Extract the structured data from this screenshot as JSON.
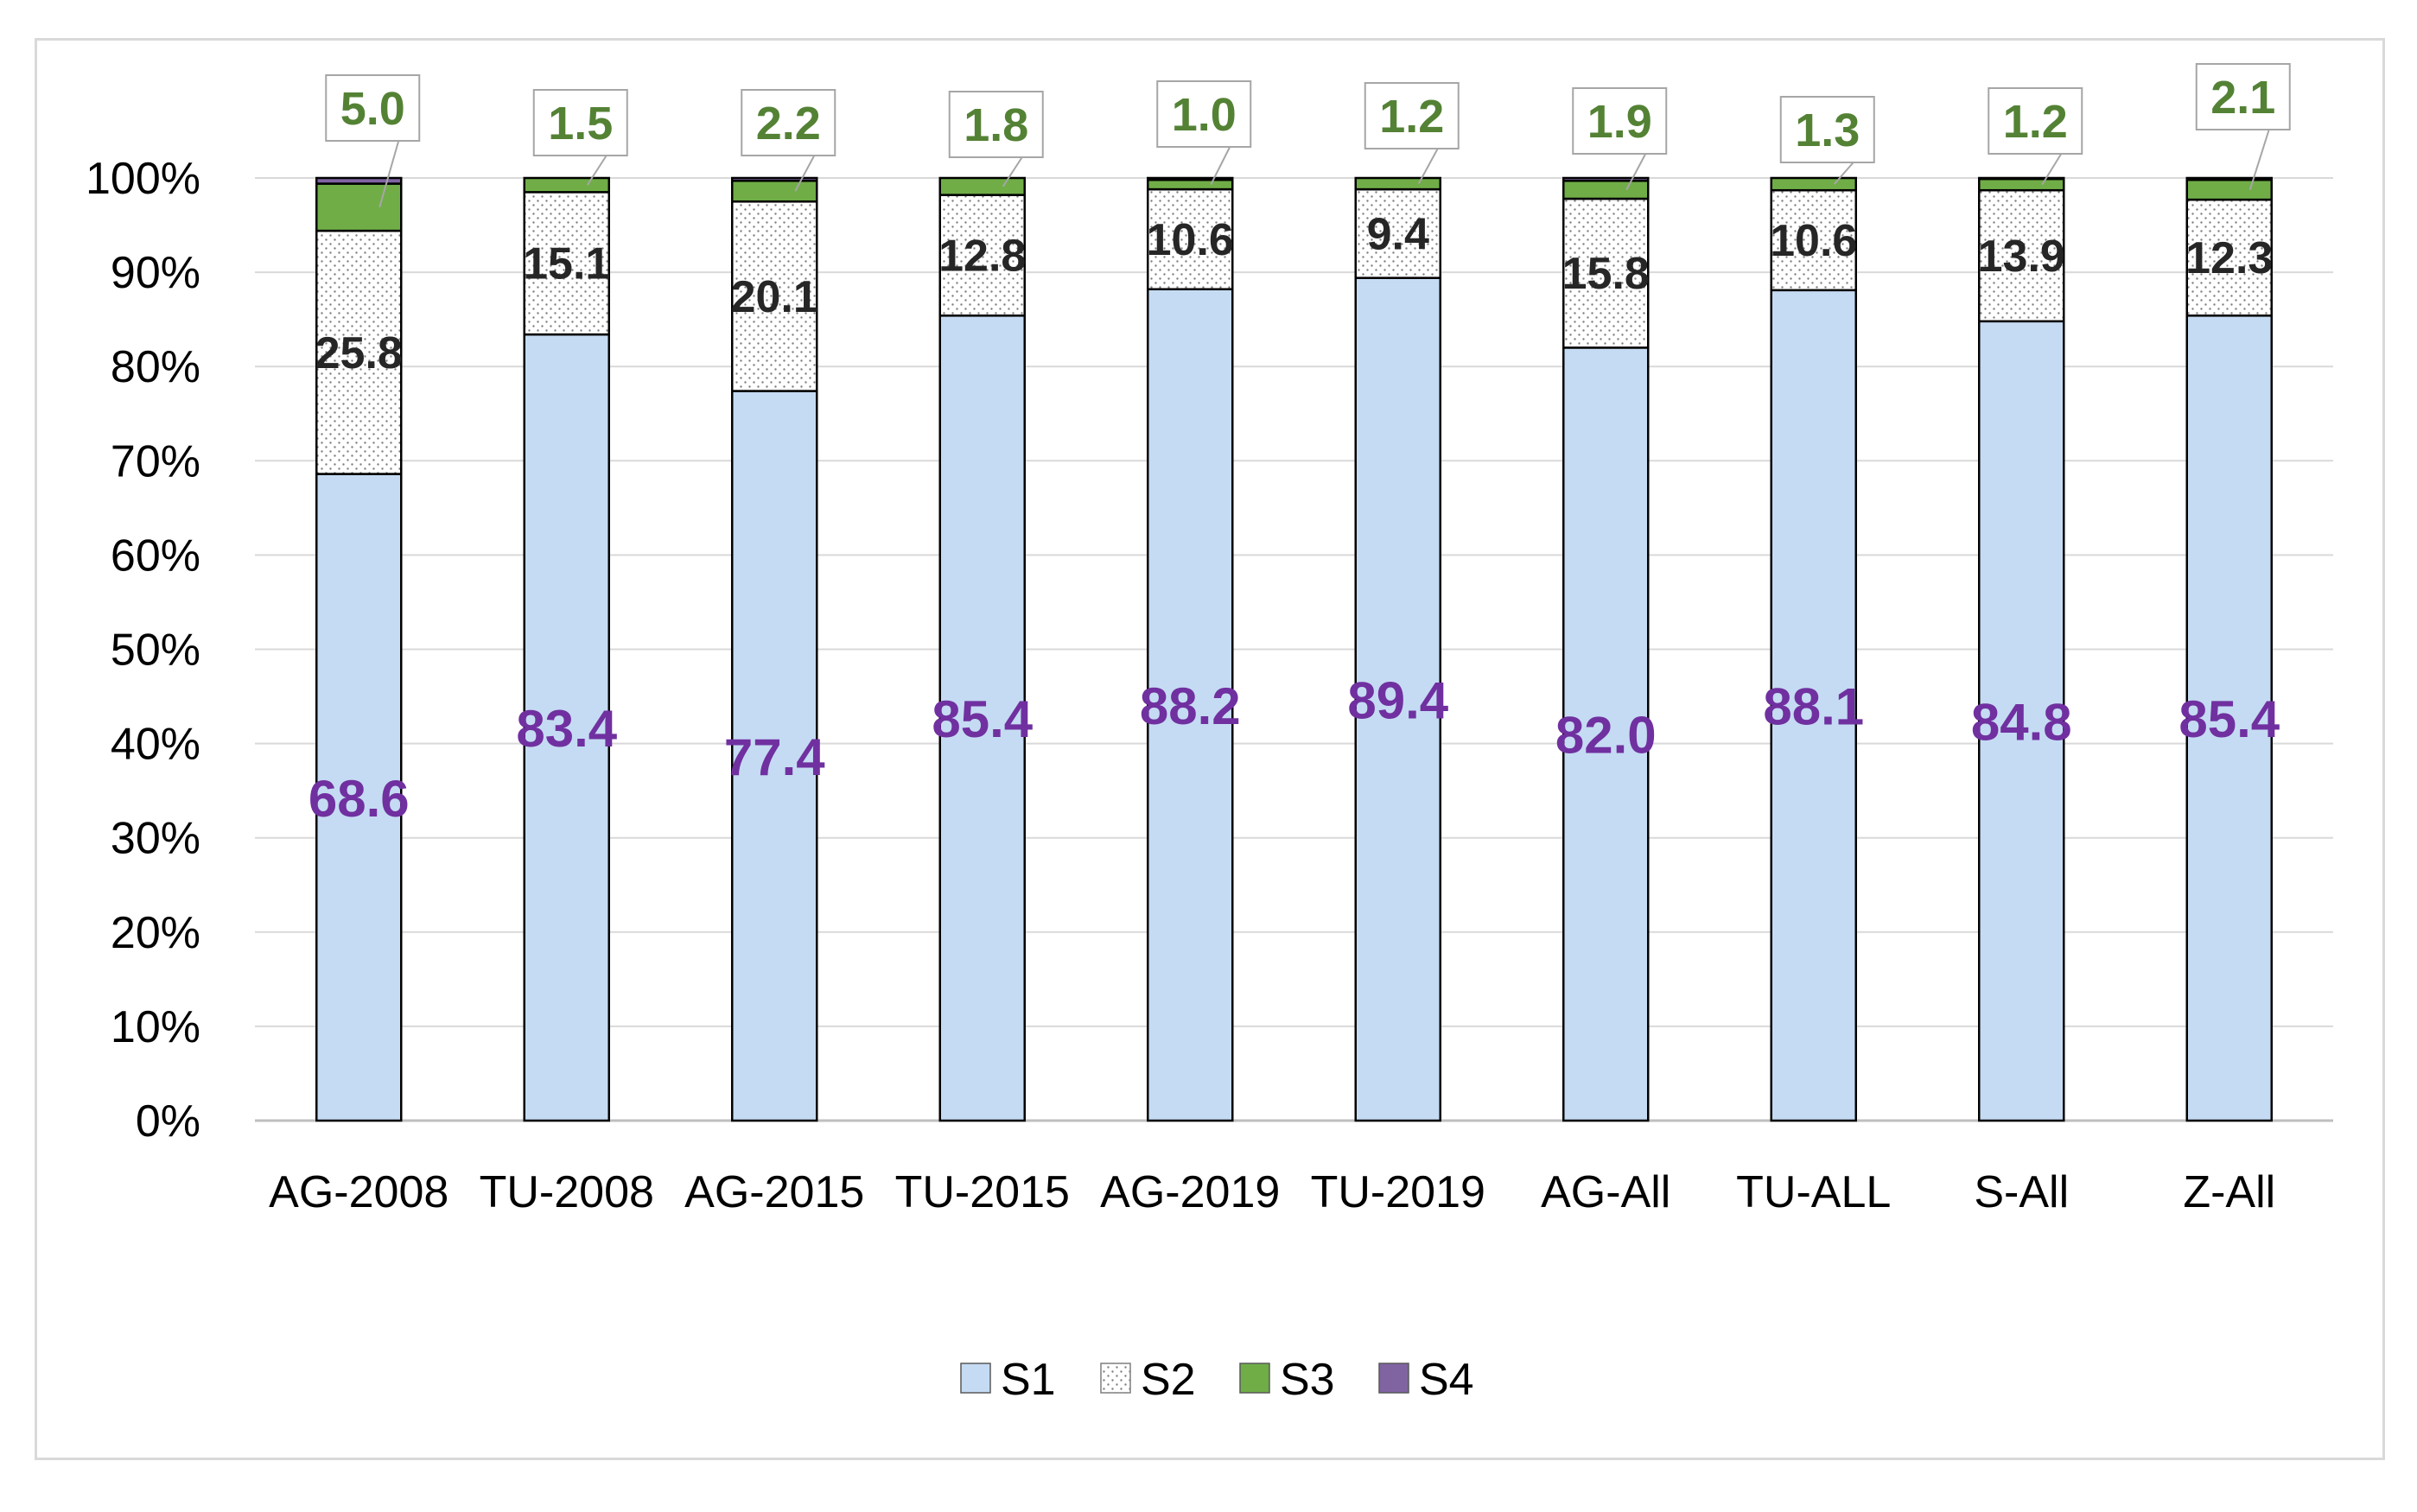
{
  "chart_data": {
    "type": "bar",
    "stacked": true,
    "percent": true,
    "title": "",
    "xlabel": "",
    "ylabel": "",
    "ylim": [
      0,
      100
    ],
    "grid": true,
    "legend_position": "bottom",
    "y_ticks": [
      "0%",
      "10%",
      "20%",
      "30%",
      "40%",
      "50%",
      "60%",
      "70%",
      "80%",
      "90%",
      "100%"
    ],
    "categories": [
      "AG-2008",
      "TU-2008",
      "AG-2015",
      "TU-2015",
      "AG-2019",
      "TU-2019",
      "AG-All",
      "TU-ALL",
      "S-All",
      "Z-All"
    ],
    "series": [
      {
        "name": "S1",
        "color": "#c5dbf3",
        "pattern": "solid",
        "values": [
          68.6,
          83.4,
          77.4,
          85.4,
          88.2,
          89.4,
          82.0,
          88.1,
          84.8,
          85.4
        ],
        "labels": [
          "68.6",
          "83.4",
          "77.4",
          "85.4",
          "88.2",
          "89.4",
          "82.0",
          "88.1",
          "84.8",
          "85.4"
        ]
      },
      {
        "name": "S2",
        "color": "#ffffff",
        "pattern": "dotted",
        "values": [
          25.8,
          15.1,
          20.1,
          12.8,
          10.6,
          9.4,
          15.8,
          10.6,
          13.9,
          12.3
        ],
        "labels": [
          "25.8",
          "15.1",
          "20.1",
          "12.8",
          "10.6",
          "9.4",
          "15.8",
          "10.6",
          "13.9",
          "12.3"
        ]
      },
      {
        "name": "S3",
        "color": "#70ad47",
        "pattern": "solid",
        "values": [
          5.0,
          1.5,
          2.2,
          1.8,
          1.0,
          1.2,
          1.9,
          1.3,
          1.2,
          2.1
        ],
        "labels": [
          "5.0",
          "1.5",
          "2.2",
          "1.8",
          "1.0",
          "1.2",
          "1.9",
          "1.3",
          "1.2",
          "2.1"
        ]
      },
      {
        "name": "S4",
        "color": "#8064a2",
        "pattern": "solid",
        "values": [
          0.6,
          0,
          0.3,
          0,
          0.2,
          0,
          0.3,
          0,
          0.1,
          0.2
        ]
      }
    ]
  }
}
